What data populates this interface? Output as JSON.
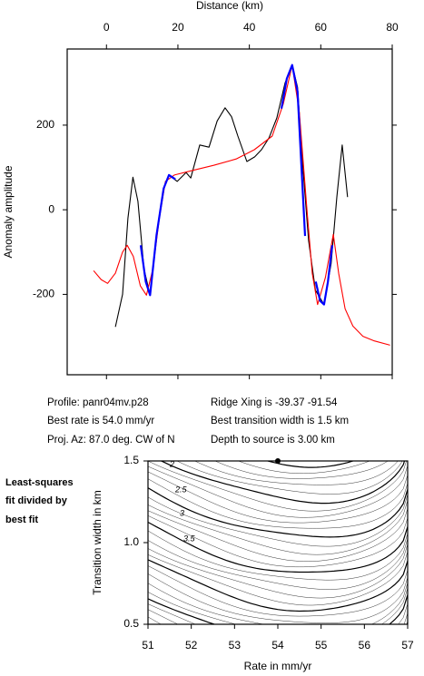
{
  "chart_data": [
    {
      "type": "line",
      "xlabel": "Distance (km)",
      "ylabel": "Anomaly amplitude",
      "xlim": [
        -11,
        80
      ],
      "xticks": [
        0,
        20,
        40,
        60,
        80
      ],
      "ylim": [
        -390,
        380
      ],
      "yticks": [
        -200,
        0,
        200
      ],
      "series": [
        {
          "color": "#000000",
          "x": [
            2.5,
            4.5,
            6,
            7.4,
            8.8,
            10.5,
            12.2,
            14,
            16,
            17.5,
            19.8,
            22.3,
            23.6,
            26.1,
            28.7,
            31,
            33.2,
            35,
            36.8,
            39.3,
            41.5,
            43.4,
            45.5,
            47.7,
            50,
            52,
            53.5,
            55,
            56.6,
            58.5,
            60.9,
            62.9,
            64.5,
            66,
            67.5
          ],
          "values": [
            -277,
            -200,
            -20,
            77,
            20,
            -140,
            -202,
            -60,
            50,
            82,
            67,
            88,
            75,
            153,
            148,
            210,
            241,
            220,
            174,
            114,
            125,
            142,
            170,
            217,
            300,
            342,
            290,
            100,
            -73,
            -190,
            -224,
            -127,
            30,
            153,
            30
          ]
        },
        {
          "color": "#ff0000",
          "x": [
            -3.6,
            -1.5,
            0.3,
            2.5,
            4.5,
            5.8,
            7.5,
            9.5,
            11.2,
            13,
            14.8,
            16.5,
            19,
            23.6,
            30,
            36.3,
            41.4,
            46.4,
            49.5,
            52,
            54,
            56.1,
            57.6,
            59.1,
            61.3,
            63.5,
            65,
            66.8,
            69,
            71.8,
            75,
            79.4
          ],
          "values": [
            -144,
            -165,
            -174,
            -150,
            -100,
            -84,
            -110,
            -180,
            -202,
            -140,
            -20,
            67,
            82,
            92,
            105,
            120,
            142,
            174,
            250,
            342,
            230,
            2,
            -150,
            -224,
            -160,
            -58,
            -150,
            -234,
            -275,
            -299,
            -310,
            -320
          ]
        },
        {
          "color": "#0000ff",
          "x": [
            9.6,
            11,
            12.2,
            14,
            16,
            17.5,
            19.3,
            null,
            49,
            50.5,
            52,
            53.5,
            55.6,
            null,
            58.6,
            59.8,
            60.9,
            62,
            63.2
          ],
          "values": [
            -84,
            -170,
            -202,
            -60,
            50,
            82,
            72,
            null,
            239,
            310,
            342,
            280,
            -62,
            null,
            -170,
            -215,
            -224,
            -170,
            -84
          ]
        }
      ]
    },
    {
      "type": "contour",
      "xlabel": "Rate in mm/yr",
      "ylabel": "Transition width in km",
      "xlim": [
        51,
        57
      ],
      "xticks": [
        51,
        52,
        53,
        54,
        55,
        56,
        57
      ],
      "ylim": [
        0.5,
        1.5
      ],
      "yticks": [
        0.5,
        {
          "value": 1.0,
          "label": "1.0"
        },
        1.5
      ],
      "best_fit": {
        "x": 54,
        "y": 1.5
      },
      "contour_labels": [
        2,
        2.5,
        3,
        3.5
      ],
      "side_note": [
        "Least-squares",
        "fit divided by",
        "best fit"
      ]
    }
  ],
  "info": {
    "profile": "Profile: panr04mv.p28",
    "ridge": "Ridge Xing is -39.37 -91.54",
    "rate": "Best rate is 54.0 mm/yr",
    "width": "Best transition width is 1.5 km",
    "azimuth": "Proj. Az: 87.0 deg. CW of N",
    "depth": "Depth to source is   3.00 km"
  }
}
